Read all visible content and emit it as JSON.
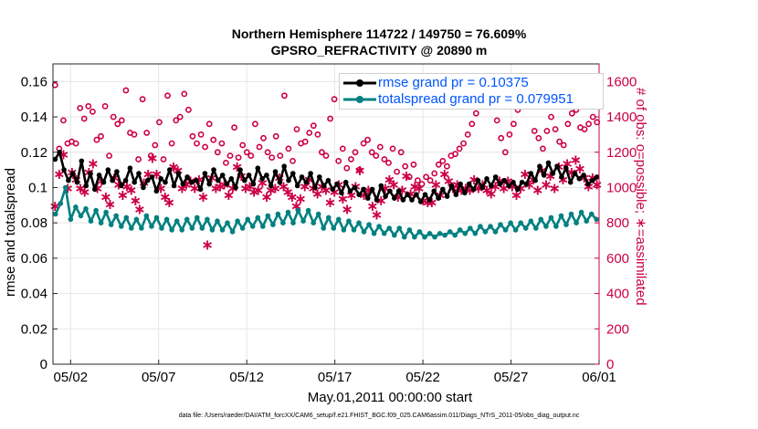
{
  "chart_data": {
    "type": "line",
    "title": "Northern Hemisphere 114722 / 149750 = 76.609%",
    "subtitle": "GPSRO_REFRACTIVITY @ 20890 m",
    "xlabel": "May.01,2011 00:00:00 start",
    "ylabel": "rmse and totalspread",
    "ylabel_right": "# of obs: o=possible; ∗=assimilated",
    "footer": "data file: /Users/raeder/DAI/ATM_forcXX/CAM6_setup/f.e21.FHIST_BGC.f09_025.CAM6assim.011/Diags_NTrS_2011-05/obs_diag_output.nc",
    "xlim": [
      0.0,
      31.0
    ],
    "ylim": [
      0,
      0.17
    ],
    "ylim_right": [
      0,
      1700
    ],
    "grid": true,
    "legend_position": "top-right",
    "x_ticks": [
      {
        "v": 1,
        "label": "05/02"
      },
      {
        "v": 6,
        "label": "05/07"
      },
      {
        "v": 11,
        "label": "05/12"
      },
      {
        "v": 16,
        "label": "05/17"
      },
      {
        "v": 21,
        "label": "05/22"
      },
      {
        "v": 26,
        "label": "05/27"
      },
      {
        "v": 31,
        "label": "06/01"
      }
    ],
    "y_ticks": [
      "0",
      "0.02",
      "0.04",
      "0.06",
      "0.08",
      "0.1",
      "0.12",
      "0.14",
      "0.16"
    ],
    "y_tick_values": [
      0,
      0.02,
      0.04,
      0.06,
      0.08,
      0.1,
      0.12,
      0.14,
      0.16
    ],
    "y_ticks_right": [
      "0",
      "200",
      "400",
      "600",
      "800",
      "1000",
      "1200",
      "1400",
      "1600"
    ],
    "y_tick_values_right": [
      0,
      200,
      400,
      600,
      800,
      1000,
      1200,
      1400,
      1600
    ],
    "colors": {
      "rmse": "#000000",
      "spread": "#008080",
      "obs": "#cc0044",
      "legend_text": "#0055ff"
    },
    "series": [
      {
        "name": "rmse grand pr = 0.10375",
        "axis": "left",
        "values": [
          0.116,
          0.12,
          0.11,
          0.104,
          0.108,
          0.103,
          0.115,
          0.101,
          0.108,
          0.099,
          0.107,
          0.103,
          0.11,
          0.104,
          0.109,
          0.101,
          0.104,
          0.111,
          0.103,
          0.108,
          0.1,
          0.104,
          0.106,
          0.098,
          0.105,
          0.103,
          0.11,
          0.101,
          0.108,
          0.102,
          0.106,
          0.103,
          0.104,
          0.099,
          0.108,
          0.102,
          0.11,
          0.104,
          0.107,
          0.102,
          0.105,
          0.1,
          0.11,
          0.104,
          0.107,
          0.102,
          0.111,
          0.105,
          0.107,
          0.101,
          0.109,
          0.103,
          0.112,
          0.104,
          0.108,
          0.101,
          0.106,
          0.103,
          0.108,
          0.1,
          0.106,
          0.101,
          0.104,
          0.099,
          0.102,
          0.097,
          0.103,
          0.098,
          0.1,
          0.096,
          0.099,
          0.094,
          0.099,
          0.093,
          0.101,
          0.095,
          0.098,
          0.094,
          0.098,
          0.093,
          0.096,
          0.093,
          0.096,
          0.092,
          0.096,
          0.093,
          0.098,
          0.094,
          0.099,
          0.095,
          0.101,
          0.096,
          0.102,
          0.097,
          0.102,
          0.099,
          0.104,
          0.1,
          0.105,
          0.101,
          0.106,
          0.102,
          0.104,
          0.101,
          0.103,
          0.099,
          0.103,
          0.102,
          0.108,
          0.104,
          0.112,
          0.107,
          0.114,
          0.108,
          0.112,
          0.106,
          0.111,
          0.103,
          0.108,
          0.105,
          0.107,
          0.102,
          0.104,
          0.106
        ]
      },
      {
        "name": "totalspread grand pr = 0.079951",
        "axis": "left",
        "values": [
          0.085,
          0.091,
          0.1,
          0.082,
          0.089,
          0.084,
          0.088,
          0.081,
          0.087,
          0.08,
          0.086,
          0.079,
          0.084,
          0.078,
          0.083,
          0.077,
          0.082,
          0.077,
          0.084,
          0.078,
          0.083,
          0.077,
          0.082,
          0.076,
          0.081,
          0.076,
          0.082,
          0.077,
          0.083,
          0.077,
          0.082,
          0.076,
          0.081,
          0.076,
          0.08,
          0.075,
          0.081,
          0.077,
          0.082,
          0.078,
          0.083,
          0.078,
          0.084,
          0.079,
          0.085,
          0.08,
          0.086,
          0.08,
          0.087,
          0.081,
          0.087,
          0.08,
          0.085,
          0.077,
          0.083,
          0.077,
          0.082,
          0.076,
          0.081,
          0.076,
          0.08,
          0.075,
          0.079,
          0.074,
          0.078,
          0.074,
          0.077,
          0.073,
          0.077,
          0.072,
          0.076,
          0.072,
          0.075,
          0.072,
          0.074,
          0.072,
          0.074,
          0.073,
          0.075,
          0.073,
          0.076,
          0.074,
          0.077,
          0.074,
          0.078,
          0.075,
          0.078,
          0.075,
          0.079,
          0.076,
          0.08,
          0.076,
          0.08,
          0.077,
          0.081,
          0.077,
          0.082,
          0.078,
          0.083,
          0.078,
          0.084,
          0.079,
          0.085,
          0.08,
          0.086,
          0.081,
          0.085,
          0.082
        ]
      },
      {
        "name": "possible",
        "axis": "right",
        "marker": "circle",
        "values": [
          1580,
          1220,
          1380,
          1250,
          1260,
          1250,
          1450,
          1390,
          1460,
          1430,
          1270,
          1290,
          1460,
          1180,
          1400,
          1360,
          1380,
          1550,
          1310,
          1300,
          1160,
          1500,
          1310,
          1180,
          1240,
          1370,
          1160,
          1520,
          1250,
          1380,
          1400,
          1530,
          1440,
          1290,
          1250,
          1300,
          1230,
          1360,
          1270,
          1200,
          1250,
          1140,
          1180,
          1340,
          1170,
          1240,
          1200,
          1180,
          1360,
          1230,
          1280,
          1200,
          1170,
          1290,
          1180,
          1520,
          1220,
          1150,
          1330,
          1250,
          1260,
          1310,
          1350,
          1300,
          1200,
          1180,
          1390,
          1500,
          1150,
          1220,
          1110,
          1160,
          1200,
          1100,
          1250,
          1270,
          1200,
          1180,
          1230,
          1160,
          1140,
          1220,
          1090,
          1200,
          1120,
          1060,
          1130,
          1040,
          1020,
          1060,
          1040,
          1080,
          1130,
          1150,
          1120,
          1180,
          1190,
          1220,
          1250,
          1300,
          1360,
          1420,
          1480,
          1540,
          1600,
          1460,
          1380,
          1280,
          1200,
          1300,
          1360,
          1440,
          1520,
          1600,
          1540,
          1320,
          1280,
          1220,
          1320,
          1400,
          1330,
          1260,
          1240,
          1360,
          1420,
          1440,
          1340,
          1330,
          1360,
          1400,
          1370
        ]
      },
      {
        "name": "assimilated",
        "axis": "right",
        "marker": "asterisk",
        "values": [
          900,
          1080,
          1190,
          1000,
          1090,
          1050,
          1000,
          980,
          1090,
          1140,
          1000,
          1040,
          950,
          910,
          1060,
          1020,
          960,
          1010,
          990,
          930,
          880,
          1030,
          1080,
          1170,
          1080,
          1000,
          950,
          920,
          1120,
          1100,
          1000,
          1020,
          1040,
          1000,
          1050,
          950,
          680,
          1060,
          1000,
          1010,
          1020,
          960,
          1000,
          1120,
          1070,
          1000,
          1010,
          980,
          990,
          1030,
          950,
          990,
          1000,
          1060,
          1010,
          980,
          950,
          900,
          940,
          1010,
          1050,
          1000,
          970,
          1010,
          990,
          920,
          980,
          1020,
          940,
          880,
          960,
          1010,
          1100,
          960,
          990,
          900,
          850,
          930,
          1000,
          1050,
          1020,
          950,
          990,
          1070,
          970,
          1010,
          1000,
          930,
          920,
          920,
          1020,
          960,
          1080,
          1040,
          1000,
          1020,
          990,
          1000,
          990,
          1050,
          1000,
          1020,
          990,
          970,
          1010,
          1040,
          1000,
          1040,
          1010,
          960,
          1000,
          1080,
          1020,
          1050,
          990,
          1100,
          1020,
          1070,
          1000,
          1120,
          1050,
          1140,
          1090,
          1160,
          1110,
          1060,
          1010,
          1060,
          1020
        ]
      }
    ]
  }
}
